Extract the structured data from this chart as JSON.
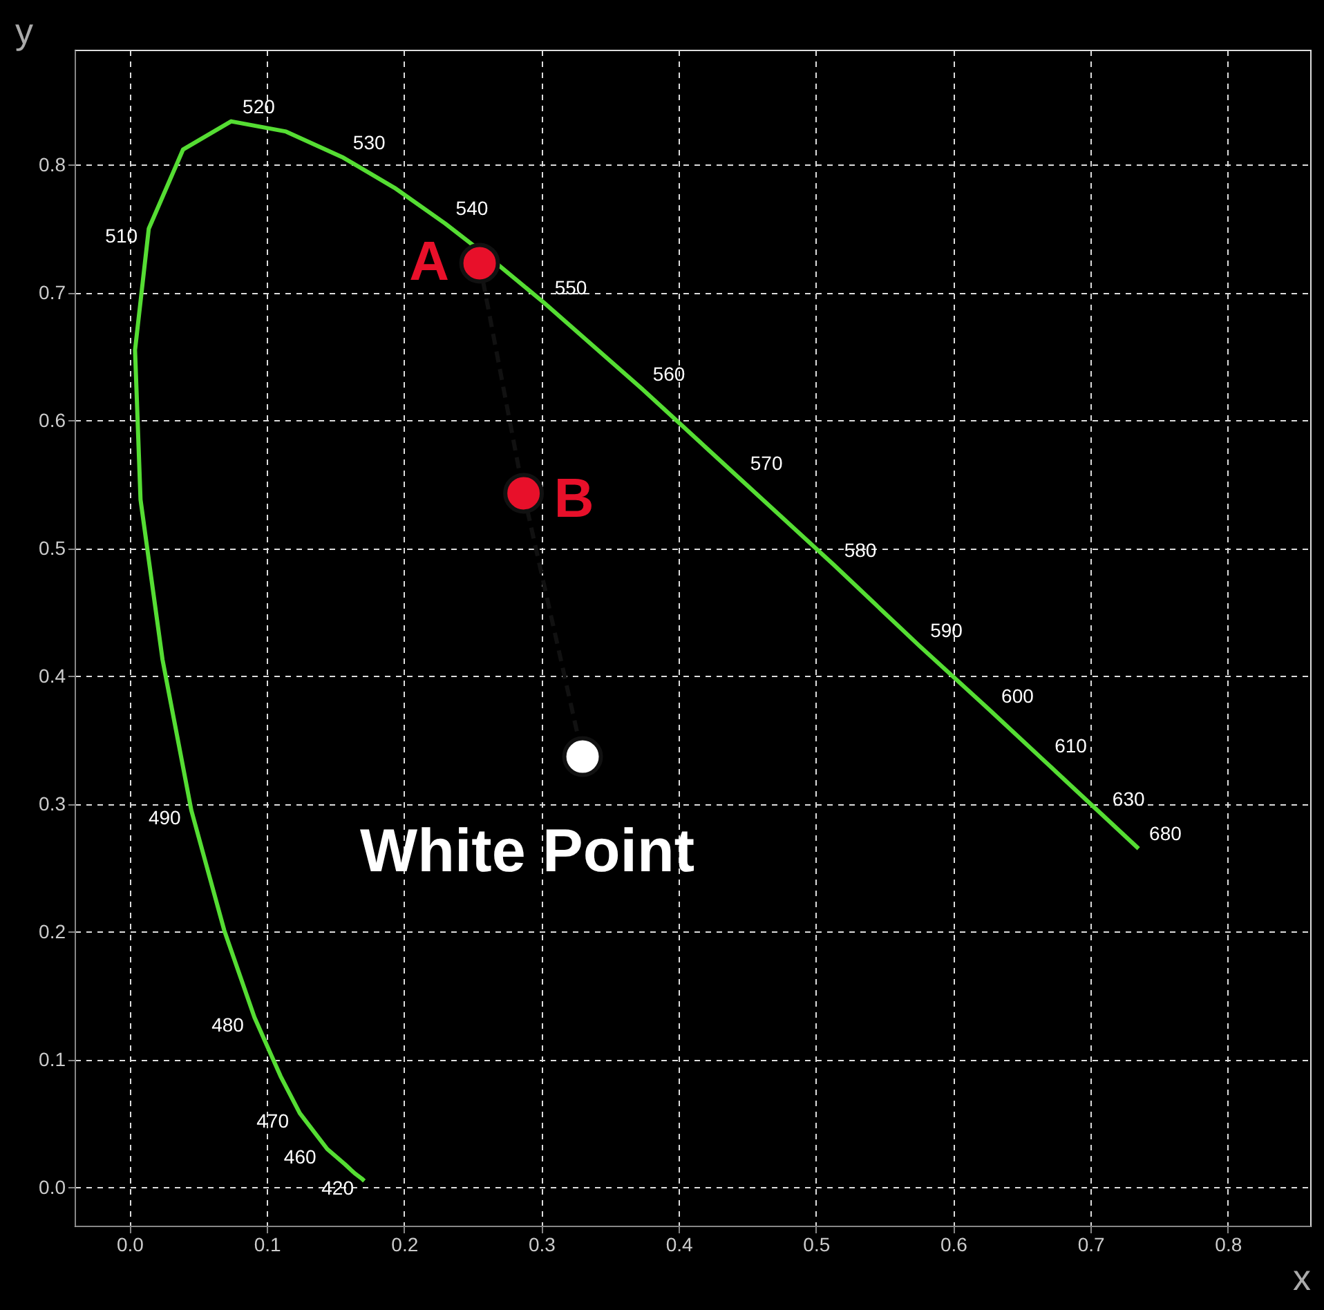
{
  "chart_data": {
    "type": "line",
    "xlabel": "x",
    "ylabel": "y",
    "xlim": [
      -0.04,
      0.86
    ],
    "ylim": [
      -0.03,
      0.89
    ],
    "xticks": [
      {
        "value": 0,
        "label": "0.0"
      },
      0.1,
      0.2,
      0.3,
      0.4,
      0.5,
      0.6,
      0.7,
      0.8
    ],
    "yticks": [
      {
        "value": 0,
        "label": "0.0"
      },
      0.1,
      0.2,
      0.3,
      0.4,
      0.5,
      0.6,
      0.7,
      0.8
    ],
    "grid": true,
    "series": [
      {
        "color": "#55dd33",
        "line_style": "solid",
        "marker": "none",
        "x": [
          0.171,
          0.169,
          0.164,
          0.157,
          0.144,
          0.124,
          0.11,
          0.091,
          0.069,
          0.045,
          0.024,
          0.008,
          0.004,
          0.014,
          0.039,
          0.074,
          0.114,
          0.155,
          0.193,
          0.23,
          0.266,
          0.302,
          0.373,
          0.444,
          0.513,
          0.575,
          0.627,
          0.666,
          0.692,
          0.708,
          0.735
        ],
        "values": [
          0.005,
          0.007,
          0.011,
          0.018,
          0.03,
          0.058,
          0.087,
          0.133,
          0.201,
          0.295,
          0.413,
          0.538,
          0.655,
          0.75,
          0.812,
          0.834,
          0.826,
          0.806,
          0.782,
          0.754,
          0.724,
          0.692,
          0.625,
          0.555,
          0.487,
          0.424,
          0.373,
          0.334,
          0.308,
          0.292,
          0.265
        ]
      },
      {
        "type": "line",
        "color": "#111111",
        "line_style": "dashed",
        "marker": "none",
        "x": [
          0.255,
          0.287,
          0.33
        ],
        "values": [
          0.723,
          0.543,
          0.337
        ]
      },
      {
        "type": "scatter",
        "name": "A",
        "color": "#e8102a",
        "marker": "circle",
        "x": [
          0.255
        ],
        "values": [
          0.723
        ]
      },
      {
        "type": "scatter",
        "name": "B",
        "color": "#e8102a",
        "marker": "circle",
        "x": [
          0.287
        ],
        "values": [
          0.543
        ]
      },
      {
        "type": "scatter",
        "name": "White Point",
        "color": "#ffffff",
        "marker": "circle",
        "x": [
          0.33
        ],
        "values": [
          0.337
        ]
      }
    ],
    "annotations": [
      {
        "text": "420",
        "x": 0.1714,
        "y": 0.0051
      },
      {
        "text": "460",
        "x": 0.144,
        "y": 0.0297
      },
      {
        "text": "470",
        "x": 0.1241,
        "y": 0.0578
      },
      {
        "text": "480",
        "x": 0.0913,
        "y": 0.1327
      },
      {
        "text": "490",
        "x": 0.0454,
        "y": 0.295
      },
      {
        "text": "510",
        "x": 0.0139,
        "y": 0.7502
      },
      {
        "text": "520",
        "x": 0.0743,
        "y": 0.8338
      },
      {
        "text": "530",
        "x": 0.1547,
        "y": 0.8059
      },
      {
        "text": "540",
        "x": 0.2296,
        "y": 0.7543
      },
      {
        "text": "550",
        "x": 0.3016,
        "y": 0.6923
      },
      {
        "text": "560",
        "x": 0.3731,
        "y": 0.6245
      },
      {
        "text": "570",
        "x": 0.4441,
        "y": 0.5547
      },
      {
        "text": "580",
        "x": 0.5125,
        "y": 0.4866
      },
      {
        "text": "590",
        "x": 0.5752,
        "y": 0.4242
      },
      {
        "text": "600",
        "x": 0.627,
        "y": 0.3725
      },
      {
        "text": "610",
        "x": 0.6658,
        "y": 0.334
      },
      {
        "text": "630",
        "x": 0.7079,
        "y": 0.292
      },
      {
        "text": "680",
        "x": 0.7347,
        "y": 0.2653
      }
    ]
  }
}
